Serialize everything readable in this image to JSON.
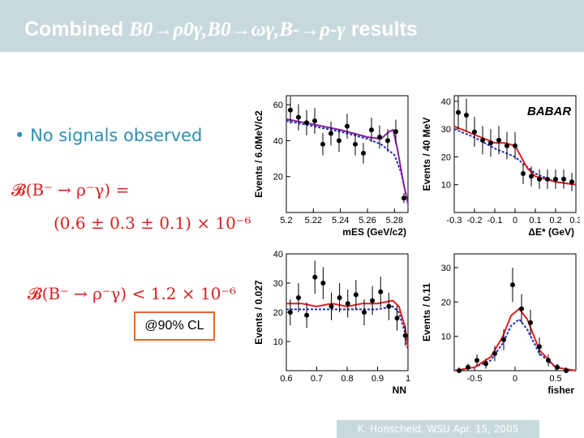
{
  "title": {
    "prefix": "Combined ",
    "decay1": "B0→ρ0γ,",
    "decay2": "B0→ωγ,",
    "decay3": "B-→ρ-γ",
    "suffix": " results"
  },
  "bullet": "No signals observed",
  "equations": {
    "eq1_lhs": "𝓑(B⁻ → ρ⁻γ) =",
    "eq1_rhs": "(0.6 ± 0.3 ± 0.1) × 10⁻⁶",
    "eq2": "𝓑(B⁻ → ρ⁻γ) < 1.2 × 10⁻⁶"
  },
  "cl_label": "@90% CL",
  "footer": "K. Honscheid, WSU Apr. 15, 2005",
  "colors": {
    "title_bar": "#c8d9dd",
    "bullet": "#2f8fb0",
    "math": "#d62020",
    "fit_total": "#e02020",
    "fit_bkg": "#2030c0",
    "fit_purple": "#8a20a0"
  },
  "watermark": "BABAR",
  "chart_data": [
    {
      "type": "scatter",
      "xlabel": "mES (GeV/c2)",
      "ylabel": "Events / 6.0MeV/c2",
      "xlim": [
        5.2,
        5.29
      ],
      "ylim": [
        0,
        65
      ],
      "xticks": [
        "5.2",
        "5.22",
        "5.24",
        "5.26",
        "5.28"
      ],
      "yticks": [
        "20",
        "40",
        "60"
      ],
      "xtick_values": [
        5.2,
        5.22,
        5.24,
        5.26,
        5.28
      ],
      "ytick_values": [
        20,
        40,
        60
      ],
      "points": {
        "x": [
          5.203,
          5.209,
          5.215,
          5.221,
          5.227,
          5.233,
          5.239,
          5.245,
          5.251,
          5.257,
          5.263,
          5.269,
          5.275,
          5.281,
          5.287
        ],
        "y": [
          57,
          53,
          50,
          51,
          38,
          44,
          40,
          48,
          38,
          33,
          46,
          42,
          40,
          45,
          8
        ]
      },
      "fit_total": {
        "x": [
          5.2,
          5.22,
          5.24,
          5.26,
          5.27,
          5.276,
          5.279,
          5.282,
          5.287,
          5.29
        ],
        "y": [
          52,
          49,
          46,
          42,
          41,
          45,
          46,
          36,
          15,
          5
        ]
      },
      "fit_bkg": {
        "x": [
          5.2,
          5.22,
          5.24,
          5.26,
          5.27,
          5.28,
          5.285,
          5.29
        ],
        "y": [
          51,
          48,
          45,
          41,
          38,
          32,
          22,
          5
        ]
      }
    },
    {
      "type": "scatter",
      "xlabel": "ΔE* (GeV)",
      "ylabel": "Events / 40 MeV",
      "xlim": [
        -0.3,
        0.3
      ],
      "ylim": [
        0,
        42
      ],
      "xticks": [
        "-0.3",
        "-0.2",
        "-0.1",
        "0",
        "0.1",
        "0.2",
        "0.3"
      ],
      "yticks": [
        "10",
        "20",
        "30",
        "40"
      ],
      "xtick_values": [
        -0.3,
        -0.2,
        -0.1,
        0,
        0.1,
        0.2,
        0.3
      ],
      "ytick_values": [
        10,
        20,
        30,
        40
      ],
      "points": {
        "x": [
          -0.28,
          -0.24,
          -0.2,
          -0.16,
          -0.12,
          -0.08,
          -0.04,
          0.0,
          0.04,
          0.08,
          0.12,
          0.16,
          0.2,
          0.24,
          0.28
        ],
        "y": [
          36,
          35,
          29,
          26,
          25,
          26,
          24,
          24,
          14,
          13,
          12,
          12,
          12,
          12,
          11
        ]
      },
      "fit_total": {
        "x": [
          -0.3,
          -0.2,
          -0.1,
          -0.05,
          0.0,
          0.03,
          0.06,
          0.1,
          0.2,
          0.3
        ],
        "y": [
          31,
          28,
          25,
          25,
          24,
          20,
          16,
          13,
          11,
          10
        ]
      },
      "fit_bkg": {
        "x": [
          -0.3,
          -0.2,
          -0.1,
          0.0,
          0.05,
          0.1,
          0.2,
          0.3
        ],
        "y": [
          30,
          27,
          23,
          20,
          17,
          14,
          11,
          10
        ]
      }
    },
    {
      "type": "scatter",
      "xlabel": "NN",
      "ylabel": "Events / 0.027",
      "xlim": [
        0.6,
        1.0
      ],
      "ylim": [
        0,
        40
      ],
      "xticks": [
        "0.6",
        "0.7",
        "0.8",
        "0.9",
        "1"
      ],
      "yticks": [
        "10",
        "20",
        "30",
        "40"
      ],
      "xtick_values": [
        0.6,
        0.7,
        0.8,
        0.9,
        1.0
      ],
      "ytick_values": [
        10,
        20,
        30,
        40
      ],
      "points": {
        "x": [
          0.613,
          0.64,
          0.667,
          0.694,
          0.721,
          0.748,
          0.775,
          0.802,
          0.829,
          0.856,
          0.883,
          0.91,
          0.937,
          0.964,
          0.991
        ],
        "y": [
          20,
          25,
          19,
          32,
          30,
          22,
          25,
          23,
          26,
          20,
          24,
          27,
          22,
          18,
          12
        ]
      },
      "fit_total": {
        "x": [
          0.6,
          0.65,
          0.7,
          0.75,
          0.8,
          0.85,
          0.9,
          0.95,
          0.97,
          0.99,
          1.0
        ],
        "y": [
          23,
          23,
          22,
          23,
          22,
          23,
          23,
          24,
          22,
          15,
          8
        ]
      },
      "fit_bkg": {
        "x": [
          0.6,
          0.7,
          0.8,
          0.9,
          0.95,
          0.97,
          0.99,
          1.0
        ],
        "y": [
          21,
          21,
          21,
          21,
          22,
          20,
          13,
          7
        ]
      }
    },
    {
      "type": "scatter",
      "xlabel": "fisher",
      "ylabel": "Events / 0.11",
      "xlim": [
        -0.75,
        0.75
      ],
      "ylim": [
        0,
        34
      ],
      "xticks": [
        "-0.5",
        "0",
        "0.5"
      ],
      "yticks": [
        "10",
        "20",
        "30"
      ],
      "xtick_values": [
        -0.5,
        0,
        0.5
      ],
      "ytick_values": [
        10,
        20,
        30
      ],
      "points": {
        "x": [
          -0.69,
          -0.58,
          -0.47,
          -0.36,
          -0.25,
          -0.14,
          -0.03,
          0.08,
          0.19,
          0.3,
          0.41,
          0.52,
          0.63
        ],
        "y": [
          0,
          1,
          3,
          2,
          5,
          9,
          25,
          18,
          14,
          7,
          3,
          1,
          0
        ]
      },
      "fit_total": {
        "x": [
          -0.75,
          -0.5,
          -0.3,
          -0.15,
          -0.05,
          0.05,
          0.15,
          0.3,
          0.5,
          0.75
        ],
        "y": [
          0,
          1,
          4,
          10,
          16,
          18,
          15,
          6,
          1,
          0
        ]
      },
      "fit_bkg": {
        "x": [
          -0.75,
          -0.5,
          -0.3,
          -0.15,
          -0.05,
          0.05,
          0.15,
          0.3,
          0.5,
          0.75
        ],
        "y": [
          0,
          1,
          3,
          8,
          13,
          15,
          12,
          5,
          1,
          0
        ]
      }
    }
  ]
}
